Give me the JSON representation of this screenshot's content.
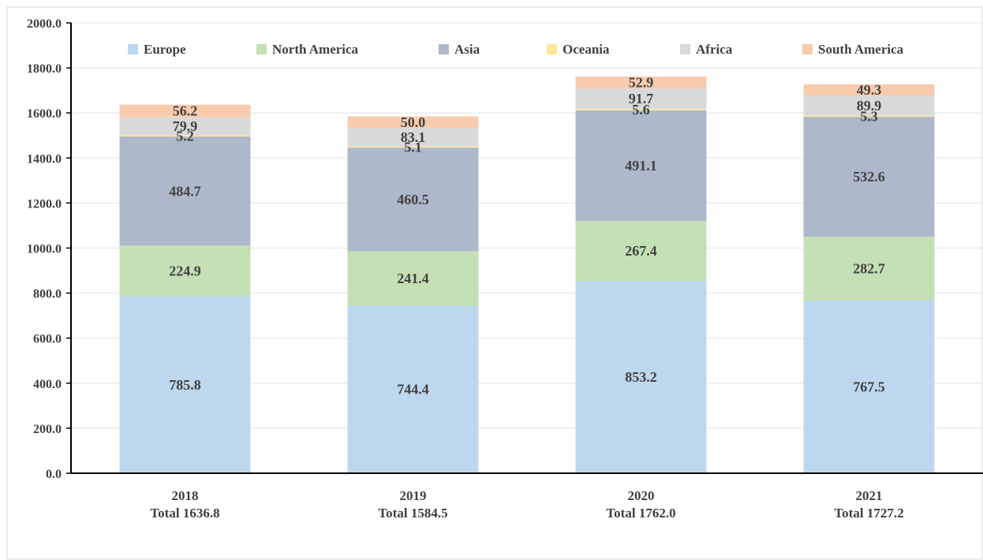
{
  "chart_data": {
    "type": "bar",
    "stacked": true,
    "categories": [
      "2018",
      "2019",
      "2020",
      "2021"
    ],
    "category_subtitles": [
      "Total 1636.8",
      "Total 1584.5",
      "Total 1762.0",
      "Total 1727.2"
    ],
    "series": [
      {
        "name": "Europe",
        "color": "#BDD7EE",
        "values": [
          785.8,
          744.4,
          853.2,
          767.5
        ],
        "labels": [
          "785.8",
          "744.4",
          "853.2",
          "767.5"
        ]
      },
      {
        "name": "North America",
        "color": "#C5E0B4",
        "values": [
          224.9,
          241.4,
          267.4,
          282.7
        ],
        "labels": [
          "224.9",
          "241.4",
          "267.4",
          "282.7"
        ]
      },
      {
        "name": "Asia",
        "color": "#ADB9CA",
        "values": [
          484.7,
          460.5,
          491.1,
          532.6
        ],
        "labels": [
          "484.7",
          "460.5",
          "491.1",
          "532.6"
        ]
      },
      {
        "name": "Oceania",
        "color": "#FFE699",
        "values": [
          5.2,
          5.1,
          5.6,
          5.3
        ],
        "labels": [
          "5.2",
          "5.1",
          "5.6",
          "5.3"
        ]
      },
      {
        "name": "Africa",
        "color": "#D9D9D9",
        "values": [
          79.9,
          83.1,
          91.7,
          89.9
        ],
        "labels": [
          "79.9",
          "83.1",
          "91.7",
          "89.9"
        ]
      },
      {
        "name": "South America",
        "color": "#F8CBAD",
        "values": [
          56.2,
          50.0,
          52.9,
          49.3
        ],
        "labels": [
          "56.2",
          "50.0",
          "52.9",
          "49.3"
        ]
      }
    ],
    "ylim": [
      0,
      2000
    ],
    "yticks": [
      "0.0",
      "200.0",
      "400.0",
      "600.0",
      "800.0",
      "1000.0",
      "1200.0",
      "1400.0",
      "1600.0",
      "1800.0",
      "2000.0"
    ],
    "ytick_values": [
      0,
      200,
      400,
      600,
      800,
      1000,
      1200,
      1400,
      1600,
      1800,
      2000
    ],
    "title": "",
    "xlabel": "",
    "ylabel": "",
    "grid": true,
    "legend": "top"
  }
}
